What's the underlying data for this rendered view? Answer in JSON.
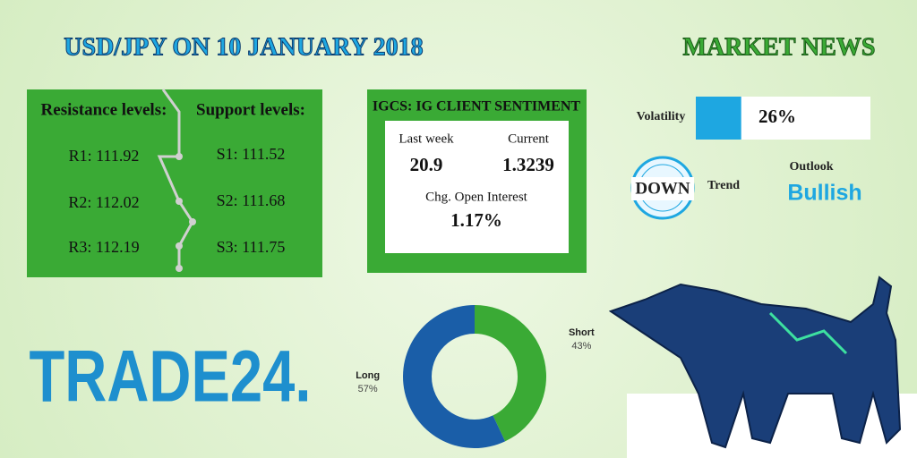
{
  "title": "USD/JPY ON 10 JANUARY 2018",
  "market_news": "MARKET NEWS",
  "levels": {
    "resistance_header": "Resistance levels:",
    "support_header": "Support levels:",
    "resistance": [
      "R1: 111.92",
      "R2: 112.02",
      "R3: 112.19"
    ],
    "support": [
      "S1: 111.52",
      "S2: 111.68",
      "S3: 111.75"
    ]
  },
  "sentiment": {
    "title": "IGCS: IG CLIENT SENTIMENT",
    "last_week_label": "Last week",
    "last_week": "20.9",
    "current_label": "Current",
    "current": "1.3239",
    "chg_label": "Chg. Open Interest",
    "chg": "1.17%"
  },
  "volatility": {
    "label": "Volatility",
    "value": 26,
    "value_label": "26%",
    "color": "#1ea7e1"
  },
  "trend": {
    "badge": "DOWN",
    "label": "Trend"
  },
  "outlook": {
    "label": "Outlook",
    "value": "Bullish"
  },
  "logo": "TRADE24.",
  "chart_data": {
    "type": "donut",
    "categories": [
      "Short",
      "Long"
    ],
    "values": [
      43,
      57
    ],
    "value_labels": [
      "43%",
      "57%"
    ],
    "colors": [
      "#3aaa35",
      "#1a5ea8"
    ]
  }
}
